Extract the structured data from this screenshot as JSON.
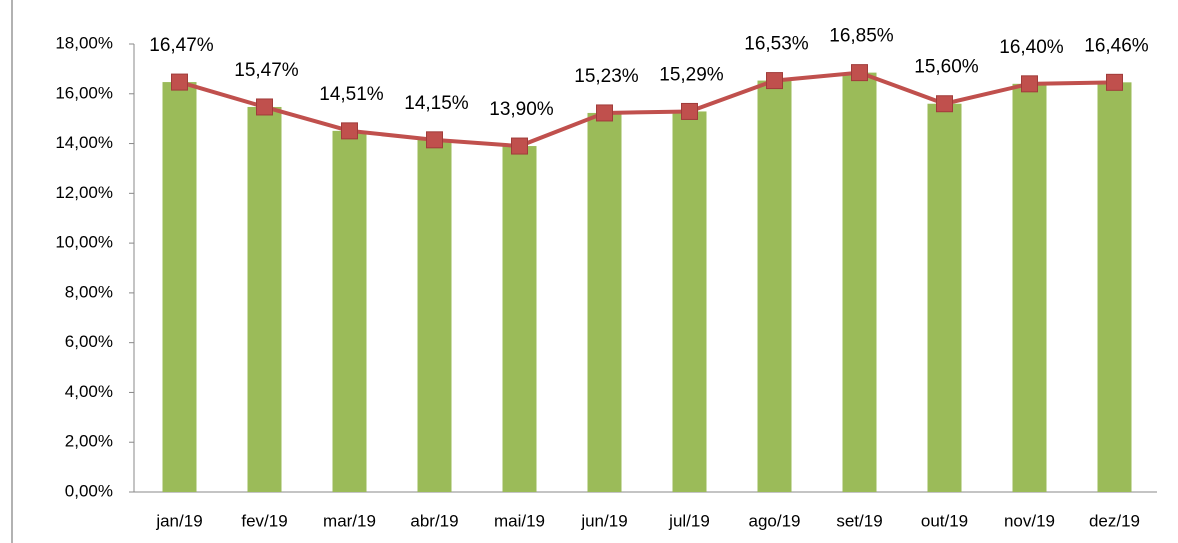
{
  "chart_data": {
    "type": "bar",
    "categories": [
      "jan/19",
      "fev/19",
      "mar/19",
      "abr/19",
      "mai/19",
      "jun/19",
      "jul/19",
      "ago/19",
      "set/19",
      "out/19",
      "nov/19",
      "dez/19"
    ],
    "series": [
      {
        "type": "bar",
        "color": "#9bbb59",
        "values": [
          16.47,
          15.47,
          14.51,
          14.15,
          13.9,
          15.23,
          15.29,
          16.53,
          16.85,
          15.6,
          16.4,
          16.46
        ]
      },
      {
        "type": "line",
        "color": "#c0504d",
        "values": [
          16.47,
          15.47,
          14.51,
          14.15,
          13.9,
          15.23,
          15.29,
          16.53,
          16.85,
          15.6,
          16.4,
          16.46
        ],
        "value_labels": [
          "16,47%",
          "15,47%",
          "14,51%",
          "14,15%",
          "13,90%",
          "15,23%",
          "15,29%",
          "16,53%",
          "16,85%",
          "15,60%",
          "16,40%",
          "16,46%"
        ]
      }
    ],
    "ylim": [
      0,
      18
    ],
    "yticks": [
      {
        "value": 0,
        "label": "0,00%"
      },
      {
        "value": 2,
        "label": "2,00%"
      },
      {
        "value": 4,
        "label": "4,00%"
      },
      {
        "value": 6,
        "label": "6,00%"
      },
      {
        "value": 8,
        "label": "8,00%"
      },
      {
        "value": 10,
        "label": "10,00%"
      },
      {
        "value": 12,
        "label": "12,00%"
      },
      {
        "value": 14,
        "label": "14,00%"
      },
      {
        "value": 16,
        "label": "16,00%"
      },
      {
        "value": 18,
        "label": "18,00%"
      }
    ]
  }
}
